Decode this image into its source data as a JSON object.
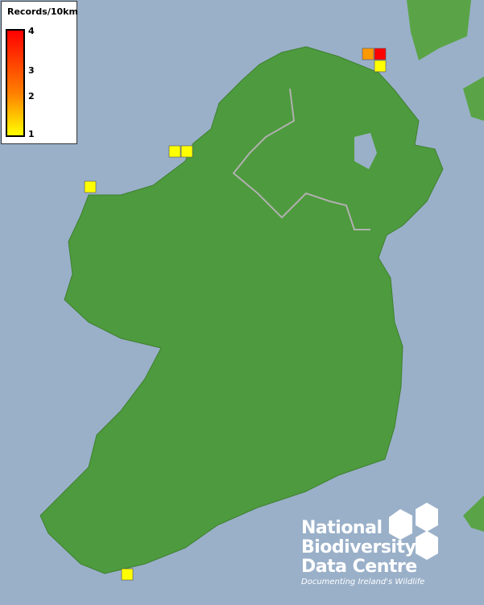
{
  "legend": {
    "title": "Records/10km",
    "labels": [
      "4",
      "3",
      "2",
      "1"
    ],
    "colors": {
      "high": "#ff0000",
      "mid": "#ff8000",
      "low": "#ffff00"
    }
  },
  "records": [
    {
      "grid": "north-coast-1",
      "count": 2,
      "color": "#ff9900"
    },
    {
      "grid": "north-coast-2",
      "count": 4,
      "color": "#ff0000"
    },
    {
      "grid": "north-coast-3",
      "count": 1,
      "color": "#ffff00"
    },
    {
      "grid": "donegal-bay-1",
      "count": 1,
      "color": "#ffff00"
    },
    {
      "grid": "donegal-bay-2",
      "count": 1,
      "color": "#ffff00"
    },
    {
      "grid": "mayo-coast",
      "count": 1,
      "color": "#ffff00"
    },
    {
      "grid": "cork-coast",
      "count": 1,
      "color": "#ffff00"
    }
  ],
  "logo": {
    "line1": "National",
    "line2": "Biodiversity",
    "line3": "Data Centre",
    "tagline": "Documenting Ireland's Wildlife"
  },
  "colors": {
    "sea": "#9ab0c9",
    "land": "#4e9a3e"
  }
}
